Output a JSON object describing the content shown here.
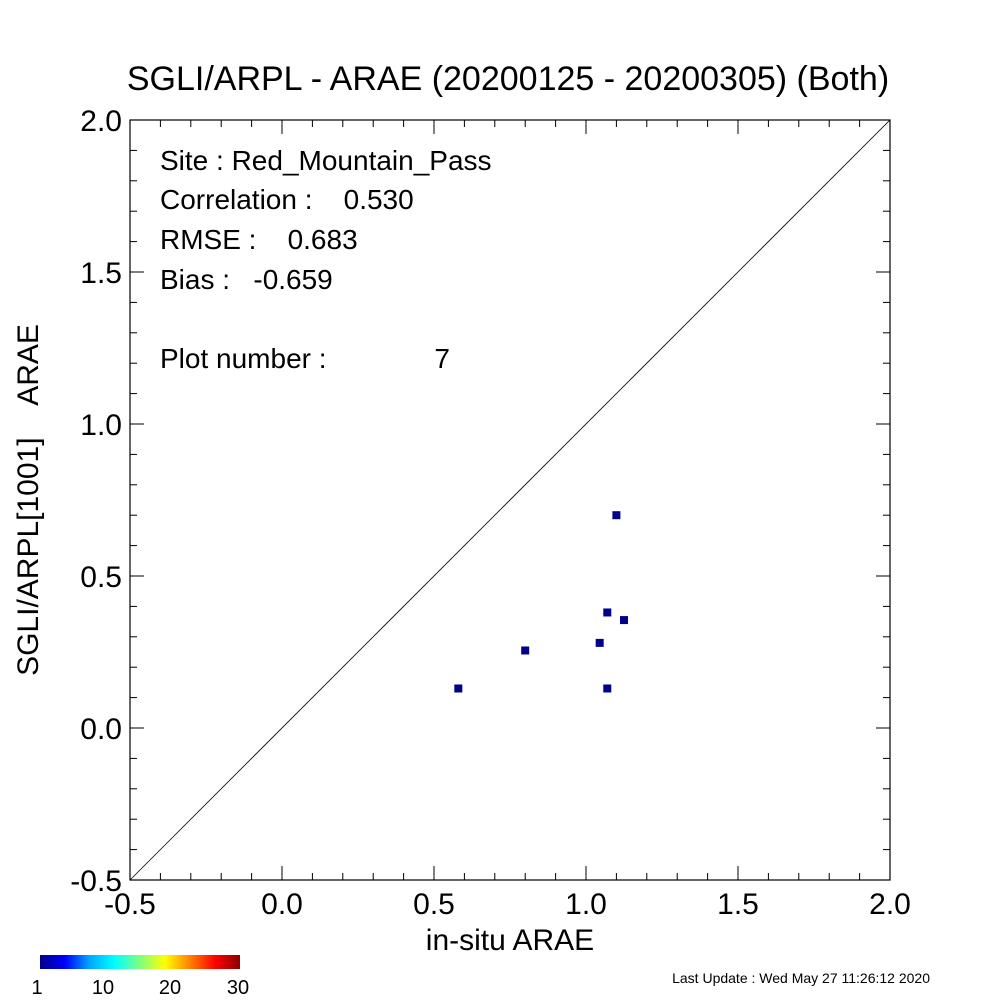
{
  "chart_data": {
    "type": "scatter",
    "title": "SGLI/ARPL - ARAE (20200125 - 20200305) (Both)",
    "xlabel": "in-situ ARAE",
    "ylabel": "SGLI/ARPL[1001]    ARAE",
    "xlim": [
      -0.5,
      2.0
    ],
    "ylim": [
      -0.5,
      2.0
    ],
    "x_ticks": [
      "-0.5",
      "0.0",
      "0.5",
      "1.0",
      "1.5",
      "2.0"
    ],
    "y_ticks": [
      "-0.5",
      "0.0",
      "0.5",
      "1.0",
      "1.5",
      "2.0"
    ],
    "one_to_one_line": true,
    "grid": false,
    "point_color": "#00008b",
    "points": [
      {
        "x": 0.58,
        "y": 0.13
      },
      {
        "x": 0.8,
        "y": 0.255
      },
      {
        "x": 1.045,
        "y": 0.28
      },
      {
        "x": 1.07,
        "y": 0.38
      },
      {
        "x": 1.07,
        "y": 0.13
      },
      {
        "x": 1.1,
        "y": 0.7
      },
      {
        "x": 1.125,
        "y": 0.355
      }
    ],
    "annotations": {
      "site": "Site : Red_Mountain_Pass",
      "correlation": "Correlation :    0.530",
      "rmse": "RMSE :    0.683",
      "bias": "Bias :   -0.659",
      "plot_number": "Plot number :",
      "plot_number_value": "7"
    },
    "colorbar": {
      "ticks": [
        "1",
        "10",
        "20",
        "30"
      ],
      "colors": [
        "#00008b",
        "#0000ff",
        "#00aaff",
        "#00ffff",
        "#7fff7f",
        "#ffff00",
        "#ff8000",
        "#ff0000",
        "#8b0000"
      ]
    },
    "last_update": "Last Update : Wed May 27 11:26:12 2020"
  }
}
